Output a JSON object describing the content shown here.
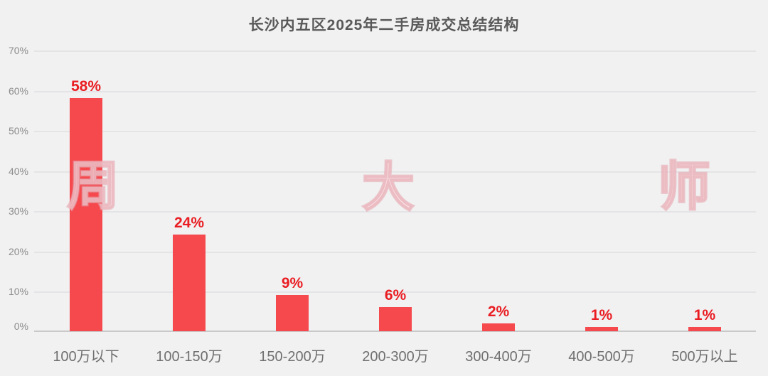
{
  "title": "长沙内五区2025年二手房成交总结结构",
  "watermarks": [
    "周",
    "大",
    "师"
  ],
  "colors": {
    "background": "#f1f1f2",
    "bar": "#f5494e",
    "data_label": "#e91d22",
    "title_text": "#595959",
    "y_axis_text": "#8c8c8c",
    "x_axis_text": "#6f6f6f",
    "gridline": "#e4e4e6",
    "axis_line": "#c9c9cb",
    "watermark_pink": "#f6d6da"
  },
  "chart_data": {
    "type": "bar",
    "title": "长沙内五区2025年二手房成交总结结构",
    "categories": [
      "100万以下",
      "100-150万",
      "150-200万",
      "200-300万",
      "300-400万",
      "400-500万",
      "500万以上"
    ],
    "values": [
      58,
      24,
      9,
      6,
      2,
      1,
      1
    ],
    "data_labels": [
      "58%",
      "24%",
      "9%",
      "6%",
      "2%",
      "1%",
      "1%"
    ],
    "xlabel": "",
    "ylabel": "",
    "ylim": [
      0,
      70
    ],
    "ytick_step": 10,
    "ytick_labels": [
      "0%",
      "10%",
      "20%",
      "30%",
      "40%",
      "50%",
      "60%",
      "70%"
    ],
    "grid": true,
    "legend_position": "none",
    "bar_color": "#f5494e",
    "label_color": "#e91d22"
  }
}
